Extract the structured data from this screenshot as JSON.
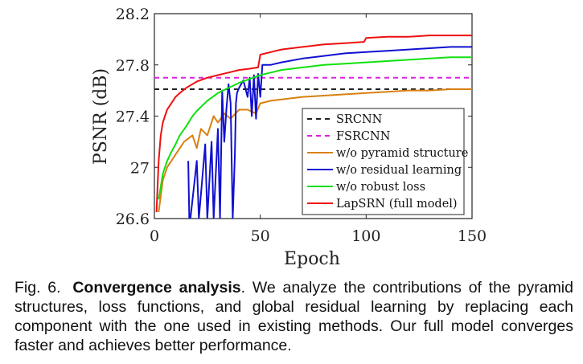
{
  "chart_data": {
    "type": "line",
    "xlabel": "Epoch",
    "ylabel": "PSNR (dB)",
    "xlim": [
      0,
      150
    ],
    "ylim": [
      26.6,
      28.2
    ],
    "xticks": [
      0,
      50,
      100,
      150
    ],
    "yticks": [
      26.6,
      27,
      27.4,
      27.8,
      28.2
    ],
    "ytick_labels": [
      "26.6",
      "27",
      "27.4",
      "27.8",
      "28.2"
    ],
    "legend_position": "lower-right",
    "grid": false,
    "series": [
      {
        "name": "SRCNN",
        "color": "#222222",
        "dash": true,
        "x": [
          0,
          150
        ],
        "y": [
          27.61,
          27.61
        ]
      },
      {
        "name": "FSRCNN",
        "color": "#e020e0",
        "dash": true,
        "x": [
          0,
          150
        ],
        "y": [
          27.7,
          27.7
        ]
      },
      {
        "name": "w/o pyramid structure",
        "color": "#d98010",
        "x": [
          2,
          4,
          6,
          8,
          10,
          14,
          18,
          20,
          22,
          25,
          28,
          30,
          33,
          36,
          40,
          44,
          48,
          50,
          55,
          60,
          70,
          80,
          90,
          100,
          110,
          120,
          130,
          140,
          150
        ],
        "y": [
          26.65,
          26.9,
          27.0,
          27.05,
          27.1,
          27.2,
          27.25,
          27.15,
          27.3,
          27.25,
          27.4,
          27.35,
          27.42,
          27.38,
          27.45,
          27.45,
          27.42,
          27.5,
          27.52,
          27.53,
          27.55,
          27.56,
          27.57,
          27.58,
          27.59,
          27.6,
          27.6,
          27.61,
          27.61
        ]
      },
      {
        "name": "w/o residual learning",
        "color": "#1010d0",
        "x": [
          16,
          16.5,
          17,
          20,
          21,
          24,
          25,
          27,
          28,
          30,
          31,
          32,
          33,
          34,
          35,
          36,
          37,
          38,
          38.5,
          39,
          40,
          42,
          44,
          45,
          46,
          47,
          48,
          49,
          50,
          51,
          52,
          55,
          60,
          70,
          80,
          90,
          100,
          110,
          120,
          130,
          140,
          150
        ],
        "y": [
          27.05,
          26.6,
          26.6,
          27.05,
          26.6,
          27.18,
          26.6,
          27.2,
          26.6,
          27.3,
          26.6,
          27.6,
          27.2,
          27.45,
          27.65,
          27.5,
          26.6,
          27.1,
          27.5,
          27.58,
          27.62,
          27.68,
          27.55,
          27.7,
          27.4,
          27.72,
          27.38,
          27.73,
          27.55,
          27.8,
          27.8,
          27.8,
          27.82,
          27.85,
          27.87,
          27.89,
          27.9,
          27.91,
          27.92,
          27.93,
          27.94,
          27.94
        ]
      },
      {
        "name": "w/o robust loss",
        "color": "#10e010",
        "x": [
          2,
          4,
          6,
          8,
          10,
          12,
          15,
          18,
          20,
          25,
          30,
          35,
          40,
          45,
          50,
          55,
          60,
          70,
          80,
          90,
          100,
          110,
          120,
          130,
          140,
          150
        ],
        "y": [
          26.75,
          26.95,
          27.05,
          27.12,
          27.18,
          27.25,
          27.32,
          27.4,
          27.44,
          27.52,
          27.58,
          27.62,
          27.66,
          27.69,
          27.72,
          27.74,
          27.76,
          27.78,
          27.8,
          27.81,
          27.82,
          27.83,
          27.84,
          27.85,
          27.86,
          27.86
        ]
      },
      {
        "name": "LapSRN (full model)",
        "color": "#ee1010",
        "x": [
          1,
          2,
          3,
          4,
          6,
          8,
          10,
          12,
          15,
          18,
          20,
          25,
          30,
          35,
          40,
          45,
          49,
          50,
          55,
          60,
          70,
          80,
          90,
          99,
          100,
          110,
          120,
          130,
          140,
          150
        ],
        "y": [
          26.65,
          27.05,
          27.25,
          27.35,
          27.45,
          27.5,
          27.55,
          27.58,
          27.62,
          27.65,
          27.67,
          27.7,
          27.72,
          27.74,
          27.76,
          27.77,
          27.78,
          27.88,
          27.9,
          27.92,
          27.94,
          27.96,
          27.97,
          27.98,
          28.01,
          28.02,
          28.02,
          28.03,
          28.03,
          28.03
        ]
      }
    ]
  },
  "caption": {
    "label": "Fig. 6.",
    "title": "Convergence analysis",
    "body": ". We analyze the contributions of the pyramid structures, loss functions, and global residual learning by replacing each component with the one used in existing methods. Our full model converges faster and achieves better performance."
  }
}
